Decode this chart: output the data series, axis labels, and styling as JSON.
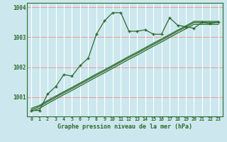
{
  "xlabel": "Graphe pression niveau de la mer (hPa)",
  "bg_color": "#cce8ee",
  "line_color": "#2d6a2d",
  "grid_color_h": "#e8a0a0",
  "grid_color_v": "#ffffff",
  "x": [
    0,
    1,
    2,
    3,
    4,
    5,
    6,
    7,
    8,
    9,
    10,
    11,
    12,
    13,
    14,
    15,
    16,
    17,
    18,
    19,
    20,
    21,
    22,
    23
  ],
  "main_line": [
    1000.55,
    1000.55,
    1001.1,
    1001.35,
    1001.75,
    1001.7,
    1002.05,
    1002.3,
    1003.1,
    1003.55,
    1003.82,
    1003.82,
    1003.2,
    1003.2,
    1003.25,
    1003.1,
    1003.1,
    1003.65,
    1003.4,
    1003.35,
    1003.3,
    1003.5,
    1003.45,
    1003.52
  ],
  "smooth_line1": [
    1000.62,
    1000.72,
    1000.88,
    1001.03,
    1001.18,
    1001.32,
    1001.47,
    1001.62,
    1001.77,
    1001.91,
    1002.06,
    1002.21,
    1002.36,
    1002.5,
    1002.65,
    1002.8,
    1002.94,
    1003.09,
    1003.24,
    1003.38,
    1003.53,
    1003.53,
    1003.53,
    1003.53
  ],
  "smooth_line2": [
    1000.57,
    1000.68,
    1000.84,
    1000.99,
    1001.14,
    1001.28,
    1001.43,
    1001.58,
    1001.73,
    1001.87,
    1002.02,
    1002.17,
    1002.32,
    1002.46,
    1002.61,
    1002.76,
    1002.9,
    1003.05,
    1003.2,
    1003.34,
    1003.49,
    1003.49,
    1003.49,
    1003.49
  ],
  "smooth_line3": [
    1000.52,
    1000.62,
    1000.78,
    1000.93,
    1001.08,
    1001.22,
    1001.37,
    1001.52,
    1001.67,
    1001.81,
    1001.96,
    1002.11,
    1002.26,
    1002.4,
    1002.55,
    1002.7,
    1002.84,
    1002.99,
    1003.14,
    1003.28,
    1003.43,
    1003.43,
    1003.43,
    1003.43
  ],
  "ylim": [
    1000.35,
    1004.15
  ],
  "yticks": [
    1001,
    1002,
    1003,
    1004
  ],
  "xticks": [
    0,
    1,
    2,
    3,
    4,
    5,
    6,
    7,
    8,
    9,
    10,
    11,
    12,
    13,
    14,
    15,
    16,
    17,
    18,
    19,
    20,
    21,
    22,
    23
  ]
}
